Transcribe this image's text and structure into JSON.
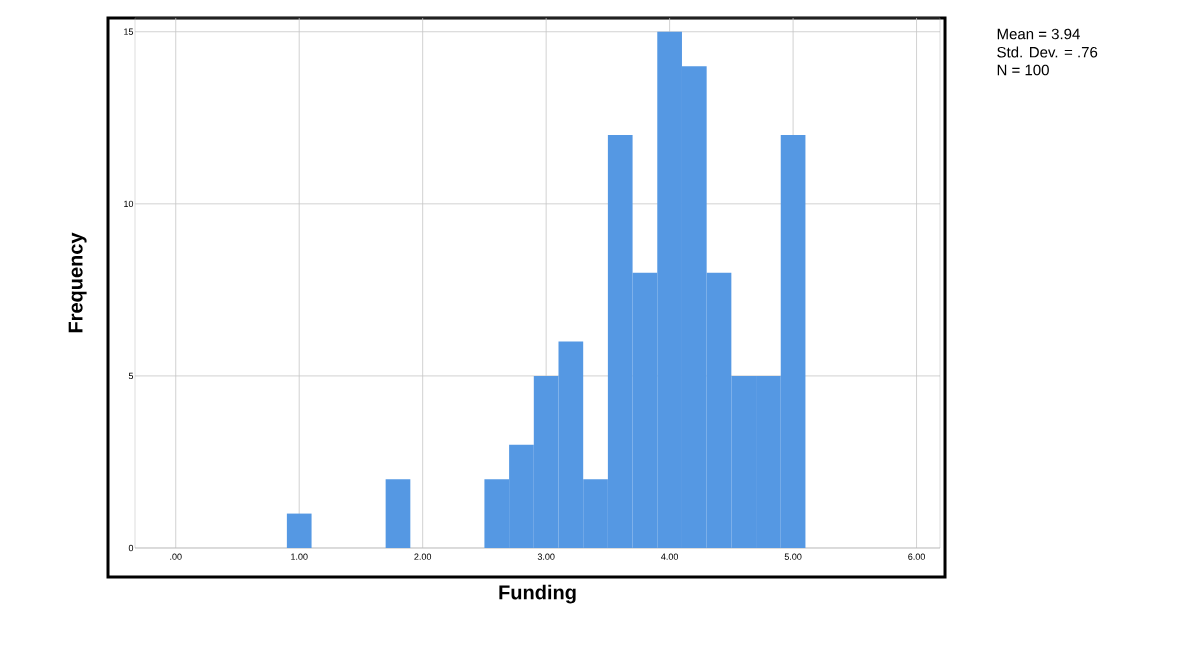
{
  "chart_data": {
    "type": "histogram",
    "xlabel": "Funding",
    "ylabel": "Frequency",
    "bins": [
      0.9,
      1.1,
      1.3,
      1.5,
      1.7,
      1.9,
      2.1,
      2.3,
      2.5,
      2.7,
      2.9,
      3.1,
      3.3,
      3.5,
      3.7,
      3.9,
      4.1,
      4.3,
      4.5,
      4.7,
      4.9,
      5.1
    ],
    "values": [
      1,
      0,
      0,
      0,
      2,
      0,
      0,
      0,
      2,
      3,
      5,
      6,
      2,
      12,
      8,
      15,
      14,
      8,
      5,
      5,
      12
    ],
    "color": "#5598e3",
    "xlim": [
      -0.33,
      6.19
    ],
    "ylim": [
      0,
      15.4
    ],
    "xticks": [
      {
        "value": 0,
        "label": ".00"
      },
      {
        "value": 1,
        "label": "1.00"
      },
      {
        "value": 2,
        "label": "2.00"
      },
      {
        "value": 3,
        "label": "3.00"
      },
      {
        "value": 4,
        "label": "4.00"
      },
      {
        "value": 5,
        "label": "5.00"
      },
      {
        "value": 6,
        "label": "6.00"
      }
    ],
    "yticks": [
      0,
      5,
      10,
      15
    ],
    "grid": true,
    "annotations": [
      "Mean = 3.94",
      "Std. Dev. = .76",
      "N = 100"
    ]
  }
}
